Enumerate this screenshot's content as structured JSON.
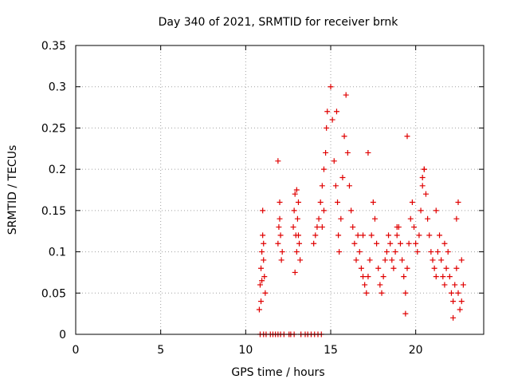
{
  "chart_data": {
    "type": "scatter",
    "title": "Day 340 of 2021, SRMTID for receiver brnk",
    "xlabel": "GPS time / hours",
    "ylabel": "SRMTID / TECUs",
    "xlim": [
      0,
      24
    ],
    "ylim": [
      0,
      0.35
    ],
    "xticks": [
      0,
      5,
      10,
      15,
      20
    ],
    "xtick_labels": [
      "0",
      "5",
      "10",
      "15",
      "20"
    ],
    "yticks": [
      0,
      0.05,
      0.1,
      0.15,
      0.2,
      0.25,
      0.3,
      0.35
    ],
    "ytick_labels": [
      "0",
      "0.05",
      "0.1",
      "0.15",
      "0.2",
      "0.25",
      "0.3",
      "0.35"
    ],
    "grid": true,
    "marker": "plus",
    "color": "#e00000",
    "series": [
      {
        "name": "SRMTID",
        "x": [
          10.8,
          10.85,
          10.9,
          10.95,
          11.0,
          11.05,
          11.1,
          11.15,
          11.0,
          10.9,
          11.05,
          10.95,
          11.9,
          11.95,
          12.0,
          12.05,
          12.1,
          12.15,
          11.9,
          12.0,
          12.8,
          12.85,
          12.9,
          12.95,
          13.0,
          13.05,
          13.1,
          13.15,
          13.2,
          12.9,
          13.0,
          13.1,
          14.0,
          14.1,
          14.2,
          14.3,
          14.4,
          14.5,
          14.6,
          14.7,
          14.75,
          14.8,
          14.6,
          14.5,
          15.0,
          15.1,
          15.2,
          15.3,
          15.4,
          15.45,
          15.5,
          15.6,
          15.7,
          15.8,
          15.9,
          15.35,
          16.0,
          16.1,
          16.2,
          16.3,
          16.4,
          16.5,
          16.6,
          16.7,
          16.8,
          16.9,
          17.0,
          17.1,
          17.2,
          17.3,
          17.4,
          17.5,
          17.6,
          17.7,
          17.8,
          17.9,
          18.0,
          18.1,
          18.2,
          18.3,
          18.4,
          18.5,
          18.6,
          18.7,
          18.8,
          18.9,
          19.0,
          19.1,
          19.2,
          19.3,
          19.4,
          19.5,
          19.6,
          19.7,
          19.8,
          19.9,
          20.0,
          20.1,
          20.2,
          20.3,
          20.4,
          20.5,
          20.6,
          20.7,
          20.8,
          20.9,
          21.0,
          21.1,
          21.2,
          21.3,
          21.4,
          21.5,
          21.6,
          21.7,
          21.8,
          21.9,
          22.0,
          22.1,
          22.2,
          22.3,
          22.4,
          22.5,
          22.6,
          22.7,
          22.8,
          22.2,
          22.5,
          22.7,
          10.85,
          11.05,
          11.2,
          11.45,
          11.6,
          11.75,
          11.9,
          12.05,
          12.25,
          12.55,
          12.65,
          12.85,
          13.25,
          13.5,
          13.65,
          13.85,
          14.05,
          14.25,
          14.45,
          19.5,
          20.5,
          19.4,
          17.2,
          20.4,
          21.2,
          22.4,
          16.9,
          18.9,
          21.7
        ],
        "y": [
          0.03,
          0.06,
          0.08,
          0.1,
          0.12,
          0.09,
          0.07,
          0.05,
          0.15,
          0.04,
          0.11,
          0.065,
          0.11,
          0.13,
          0.14,
          0.12,
          0.09,
          0.1,
          0.21,
          0.16,
          0.13,
          0.15,
          0.17,
          0.12,
          0.1,
          0.14,
          0.16,
          0.11,
          0.09,
          0.075,
          0.175,
          0.12,
          0.11,
          0.12,
          0.13,
          0.14,
          0.16,
          0.18,
          0.2,
          0.22,
          0.25,
          0.27,
          0.15,
          0.13,
          0.3,
          0.26,
          0.21,
          0.18,
          0.16,
          0.12,
          0.1,
          0.14,
          0.19,
          0.24,
          0.29,
          0.27,
          0.22,
          0.18,
          0.15,
          0.13,
          0.11,
          0.09,
          0.12,
          0.1,
          0.08,
          0.07,
          0.06,
          0.05,
          0.07,
          0.09,
          0.12,
          0.16,
          0.14,
          0.11,
          0.08,
          0.06,
          0.05,
          0.07,
          0.09,
          0.1,
          0.12,
          0.11,
          0.09,
          0.08,
          0.1,
          0.12,
          0.13,
          0.11,
          0.09,
          0.07,
          0.05,
          0.08,
          0.11,
          0.14,
          0.16,
          0.13,
          0.11,
          0.1,
          0.12,
          0.15,
          0.18,
          0.2,
          0.17,
          0.14,
          0.12,
          0.1,
          0.09,
          0.08,
          0.07,
          0.1,
          0.12,
          0.09,
          0.07,
          0.06,
          0.08,
          0.1,
          0.07,
          0.05,
          0.04,
          0.06,
          0.08,
          0.05,
          0.03,
          0.04,
          0.06,
          0.02,
          0.16,
          0.09,
          0,
          0,
          0,
          0,
          0,
          0,
          0,
          0,
          0,
          0,
          0,
          0,
          0,
          0,
          0,
          0,
          0,
          0,
          0,
          0.24,
          0.2,
          0.025,
          0.22,
          0.19,
          0.15,
          0.14,
          0.12,
          0.13,
          0.11
        ]
      }
    ]
  }
}
